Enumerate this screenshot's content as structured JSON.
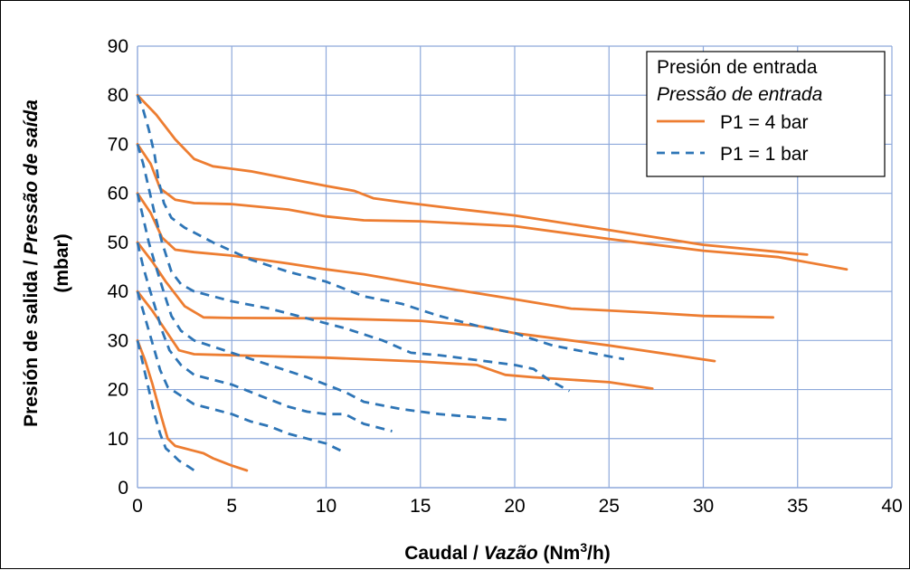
{
  "chart_data": {
    "type": "line",
    "x_label": {
      "part1": "Caudal / ",
      "part2": "Vazão",
      "part3": " (Nm",
      "sup": "3",
      "part4": "/h)"
    },
    "y_label": {
      "line1_part1": "Presión de salida / ",
      "line1_part2": "Pressão de saída",
      "line2": "(mbar)"
    },
    "xlim": [
      0,
      40
    ],
    "ylim": [
      0,
      90
    ],
    "x_ticks": [
      "0",
      "5",
      "10",
      "15",
      "20",
      "25",
      "30",
      "35",
      "40"
    ],
    "y_ticks": [
      "0",
      "10",
      "20",
      "30",
      "40",
      "50",
      "60",
      "70",
      "80",
      "90"
    ],
    "grid": true,
    "legend": {
      "placement": "top-right",
      "title1": "Presión de entrada",
      "title2": "Pressão de entrada",
      "entries": [
        {
          "label": "P1 = 4 bar",
          "color": "#ED7D31",
          "style": "solid"
        },
        {
          "label": "P1 = 1 bar",
          "color": "#2E75B6",
          "style": "dashed"
        }
      ]
    },
    "series": [
      {
        "group": "P1 = 4 bar",
        "points": [
          [
            0,
            80
          ],
          [
            1,
            76
          ],
          [
            2,
            71
          ],
          [
            3,
            67
          ],
          [
            4,
            65.5
          ],
          [
            6,
            64.5
          ],
          [
            8,
            63
          ],
          [
            10,
            61.5
          ],
          [
            11.5,
            60.5
          ],
          [
            12.5,
            59
          ],
          [
            14,
            58.2
          ],
          [
            17,
            56.8
          ],
          [
            20,
            55.5
          ],
          [
            25,
            52.5
          ],
          [
            30,
            49.5
          ],
          [
            35.5,
            47.5
          ]
        ]
      },
      {
        "group": "P1 = 4 bar",
        "points": [
          [
            0,
            70
          ],
          [
            0.7,
            66
          ],
          [
            1.2,
            61
          ],
          [
            2,
            58.7
          ],
          [
            3,
            58
          ],
          [
            5,
            57.8
          ],
          [
            8,
            56.7
          ],
          [
            10,
            55.3
          ],
          [
            12,
            54.5
          ],
          [
            15,
            54.3
          ],
          [
            20,
            53.3
          ],
          [
            25,
            50.7
          ],
          [
            30,
            48.3
          ],
          [
            34,
            47
          ],
          [
            37.6,
            44.5
          ]
        ]
      },
      {
        "group": "P1 = 4 bar",
        "points": [
          [
            0,
            60
          ],
          [
            0.7,
            56
          ],
          [
            1.3,
            51
          ],
          [
            2,
            48.5
          ],
          [
            3,
            48
          ],
          [
            5,
            47.3
          ],
          [
            8,
            45.7
          ],
          [
            10,
            44.5
          ],
          [
            12,
            43.5
          ],
          [
            15,
            41.5
          ],
          [
            20,
            38.4
          ],
          [
            23,
            36.5
          ],
          [
            27,
            35.7
          ],
          [
            30,
            35
          ],
          [
            33.7,
            34.7
          ]
        ]
      },
      {
        "group": "P1 = 4 bar",
        "points": [
          [
            0,
            50
          ],
          [
            0.8,
            46
          ],
          [
            1.5,
            42
          ],
          [
            2.5,
            37
          ],
          [
            3.5,
            34.7
          ],
          [
            5,
            34.6
          ],
          [
            10,
            34.5
          ],
          [
            15,
            34
          ],
          [
            18,
            33
          ],
          [
            20,
            31.5
          ],
          [
            25,
            29
          ],
          [
            30.6,
            25.8
          ]
        ]
      },
      {
        "group": "P1 = 4 bar",
        "points": [
          [
            0,
            40
          ],
          [
            0.8,
            36
          ],
          [
            1.5,
            32
          ],
          [
            2.2,
            28
          ],
          [
            3,
            27.2
          ],
          [
            5,
            27
          ],
          [
            10,
            26.5
          ],
          [
            15,
            25.7
          ],
          [
            18,
            25
          ],
          [
            19.5,
            23
          ],
          [
            21,
            22.5
          ],
          [
            25,
            21.5
          ],
          [
            27.3,
            20.2
          ]
        ]
      },
      {
        "group": "P1 = 4 bar",
        "points": [
          [
            0,
            30
          ],
          [
            0.4,
            26
          ],
          [
            0.8,
            21
          ],
          [
            1.3,
            14
          ],
          [
            1.6,
            10
          ],
          [
            2,
            8.5
          ],
          [
            3,
            7.5
          ],
          [
            3.5,
            7
          ],
          [
            4,
            6
          ],
          [
            5,
            4.5
          ],
          [
            5.8,
            3.5
          ]
        ]
      },
      {
        "group": "P1 = 1 bar",
        "points": [
          [
            0,
            80
          ],
          [
            0.3,
            77
          ],
          [
            0.6,
            73
          ],
          [
            0.9,
            68
          ],
          [
            1.1,
            63
          ],
          [
            1.4,
            58
          ],
          [
            1.8,
            55
          ],
          [
            2.5,
            53
          ],
          [
            4,
            50
          ],
          [
            6,
            46.5
          ],
          [
            8,
            44
          ],
          [
            10,
            42
          ],
          [
            12,
            39
          ],
          [
            14,
            37.5
          ],
          [
            16,
            35
          ],
          [
            18,
            33
          ],
          [
            20,
            31.5
          ],
          [
            22,
            29
          ],
          [
            24,
            27.5
          ],
          [
            25.8,
            26.2
          ]
        ]
      },
      {
        "group": "P1 = 1 bar",
        "points": [
          [
            0,
            70
          ],
          [
            0.3,
            66
          ],
          [
            0.6,
            61
          ],
          [
            0.9,
            56
          ],
          [
            1.3,
            50
          ],
          [
            1.8,
            44
          ],
          [
            2.3,
            41.5
          ],
          [
            3,
            40
          ],
          [
            5,
            38
          ],
          [
            7,
            36.5
          ],
          [
            9,
            34.5
          ],
          [
            11,
            32.5
          ],
          [
            13,
            30
          ],
          [
            14.5,
            27.5
          ],
          [
            16,
            27
          ],
          [
            18,
            26
          ],
          [
            20,
            25
          ],
          [
            21,
            24.2
          ],
          [
            21.8,
            22
          ],
          [
            22.9,
            19.7
          ]
        ]
      },
      {
        "group": "P1 = 1 bar",
        "points": [
          [
            0,
            60
          ],
          [
            0.3,
            55
          ],
          [
            0.6,
            50
          ],
          [
            0.9,
            46
          ],
          [
            1.3,
            41
          ],
          [
            1.8,
            35
          ],
          [
            2.3,
            32
          ],
          [
            3,
            30
          ],
          [
            5,
            27.5
          ],
          [
            7,
            25
          ],
          [
            9,
            22.5
          ],
          [
            10,
            21
          ],
          [
            11,
            19.5
          ],
          [
            12,
            17.5
          ],
          [
            14,
            16
          ],
          [
            16,
            15
          ],
          [
            19.7,
            13.8
          ]
        ]
      },
      {
        "group": "P1 = 1 bar",
        "points": [
          [
            0,
            50
          ],
          [
            0.3,
            45
          ],
          [
            0.6,
            41
          ],
          [
            1,
            36
          ],
          [
            1.3,
            32
          ],
          [
            1.7,
            28
          ],
          [
            2.3,
            25
          ],
          [
            3,
            23
          ],
          [
            5,
            21
          ],
          [
            7,
            18
          ],
          [
            8,
            16.5
          ],
          [
            9,
            15.5
          ],
          [
            10,
            15
          ],
          [
            11,
            15
          ],
          [
            12,
            13
          ],
          [
            13.5,
            11.5
          ]
        ]
      },
      {
        "group": "P1 = 1 bar",
        "points": [
          [
            0,
            40
          ],
          [
            0.3,
            36
          ],
          [
            0.6,
            32
          ],
          [
            0.9,
            28
          ],
          [
            1.2,
            24
          ],
          [
            1.6,
            20.5
          ],
          [
            2.2,
            19
          ],
          [
            3,
            17
          ],
          [
            4,
            16
          ],
          [
            5,
            15
          ],
          [
            6,
            13.5
          ],
          [
            7,
            12.5
          ],
          [
            8,
            11
          ],
          [
            9,
            10
          ],
          [
            10,
            9
          ],
          [
            10.8,
            7.5
          ]
        ]
      },
      {
        "group": "P1 = 1 bar",
        "points": [
          [
            0,
            30
          ],
          [
            0.3,
            25
          ],
          [
            0.6,
            20
          ],
          [
            0.9,
            15
          ],
          [
            1.2,
            11
          ],
          [
            1.5,
            8
          ],
          [
            1.8,
            7
          ],
          [
            2.2,
            5.5
          ],
          [
            2.7,
            4.3
          ],
          [
            3.2,
            3
          ]
        ]
      }
    ]
  }
}
